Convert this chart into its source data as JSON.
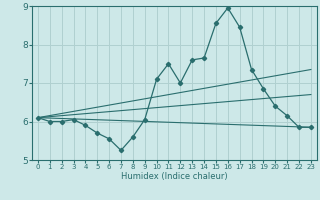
{
  "xlabel": "Humidex (Indice chaleur)",
  "xlim": [
    -0.5,
    23.5
  ],
  "ylim": [
    5,
    9
  ],
  "yticks": [
    5,
    6,
    7,
    8,
    9
  ],
  "xticks": [
    0,
    1,
    2,
    3,
    4,
    5,
    6,
    7,
    8,
    9,
    10,
    11,
    12,
    13,
    14,
    15,
    16,
    17,
    18,
    19,
    20,
    21,
    22,
    23
  ],
  "bg_color": "#cde8e8",
  "grid_color": "#b0d0d0",
  "line_color": "#2a6e6e",
  "series1_x": [
    0,
    1,
    2,
    3,
    4,
    5,
    6,
    7,
    8,
    9,
    10,
    11,
    12,
    13,
    14,
    15,
    16,
    17,
    18,
    19,
    20,
    21,
    22,
    23
  ],
  "series1_y": [
    6.1,
    6.0,
    6.0,
    6.05,
    5.9,
    5.7,
    5.55,
    5.25,
    5.6,
    6.05,
    7.1,
    7.5,
    7.0,
    7.6,
    7.65,
    8.55,
    8.95,
    8.45,
    7.35,
    6.85,
    6.4,
    6.15,
    5.85,
    5.85
  ],
  "series2_x": [
    0,
    23
  ],
  "series2_y": [
    6.1,
    5.85
  ],
  "series3_x": [
    0,
    23
  ],
  "series3_y": [
    6.1,
    7.35
  ],
  "series4_x": [
    0,
    23
  ],
  "series4_y": [
    6.1,
    6.7
  ]
}
